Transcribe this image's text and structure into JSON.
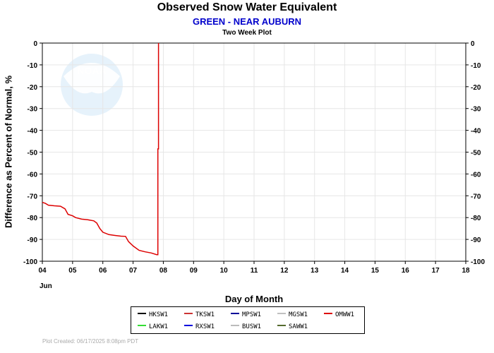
{
  "title": "Observed Snow Water Equivalent",
  "subtitle": "GREEN - NEAR AUBURN",
  "plot_name": "Two Week Plot",
  "month_label": "Jun",
  "xlabel": "Day of Month",
  "ylabel": "Difference as Percent of Normal, %",
  "footer": "Plot Created: 06/17/2025 8:08pm PDT",
  "chart_data": {
    "type": "line",
    "title": "Observed Snow Water Equivalent",
    "subtitle": "GREEN - NEAR AUBURN",
    "xlabel": "Day of Month",
    "ylabel": "Difference as Percent of Normal, %",
    "xlim": [
      4,
      18
    ],
    "ylim": [
      -100,
      0
    ],
    "x_ticks": [
      "04",
      "05",
      "06",
      "07",
      "08",
      "09",
      "10",
      "11",
      "12",
      "13",
      "14",
      "15",
      "16",
      "17",
      "18"
    ],
    "y_ticks": [
      0,
      -10,
      -20,
      -30,
      -40,
      -50,
      -60,
      -70,
      -80,
      -90,
      -100
    ],
    "grid": true,
    "legend_position": "bottom",
    "legend": [
      {
        "name": "HKSW1",
        "color": "#000000"
      },
      {
        "name": "TKSW1",
        "color": "#cc3333"
      },
      {
        "name": "MPSW1",
        "color": "#000099"
      },
      {
        "name": "MGSW1",
        "color": "#c0c0c0"
      },
      {
        "name": "OMWW1",
        "color": "#dd0000"
      },
      {
        "name": "LAKW1",
        "color": "#33dd33"
      },
      {
        "name": "RXSW1",
        "color": "#0000dd"
      },
      {
        "name": "BUSW1",
        "color": "#bbbbbb"
      },
      {
        "name": "SAWW1",
        "color": "#556b2f"
      }
    ],
    "series": [
      {
        "name": "OMWW1",
        "color": "#dd0000",
        "points": [
          [
            4.0,
            -73
          ],
          [
            4.1,
            -73.5
          ],
          [
            4.2,
            -74.3
          ],
          [
            4.4,
            -74.6
          ],
          [
            4.6,
            -74.8
          ],
          [
            4.75,
            -76
          ],
          [
            4.85,
            -78.5
          ],
          [
            5.0,
            -79.2
          ],
          [
            5.1,
            -80
          ],
          [
            5.3,
            -80.7
          ],
          [
            5.5,
            -81
          ],
          [
            5.7,
            -81.5
          ],
          [
            5.8,
            -82.5
          ],
          [
            5.9,
            -85
          ],
          [
            6.0,
            -86.7
          ],
          [
            6.2,
            -87.8
          ],
          [
            6.4,
            -88.2
          ],
          [
            6.6,
            -88.5
          ],
          [
            6.75,
            -88.6
          ],
          [
            6.85,
            -91
          ],
          [
            7.0,
            -93
          ],
          [
            7.2,
            -95
          ],
          [
            7.4,
            -95.7
          ],
          [
            7.6,
            -96.2
          ],
          [
            7.78,
            -97
          ],
          [
            7.82,
            -97
          ],
          [
            7.82,
            -48.5
          ],
          [
            7.84,
            -48.5
          ],
          [
            7.84,
            0
          ]
        ]
      }
    ]
  },
  "noaa_logo": {
    "text": "NOAA"
  }
}
